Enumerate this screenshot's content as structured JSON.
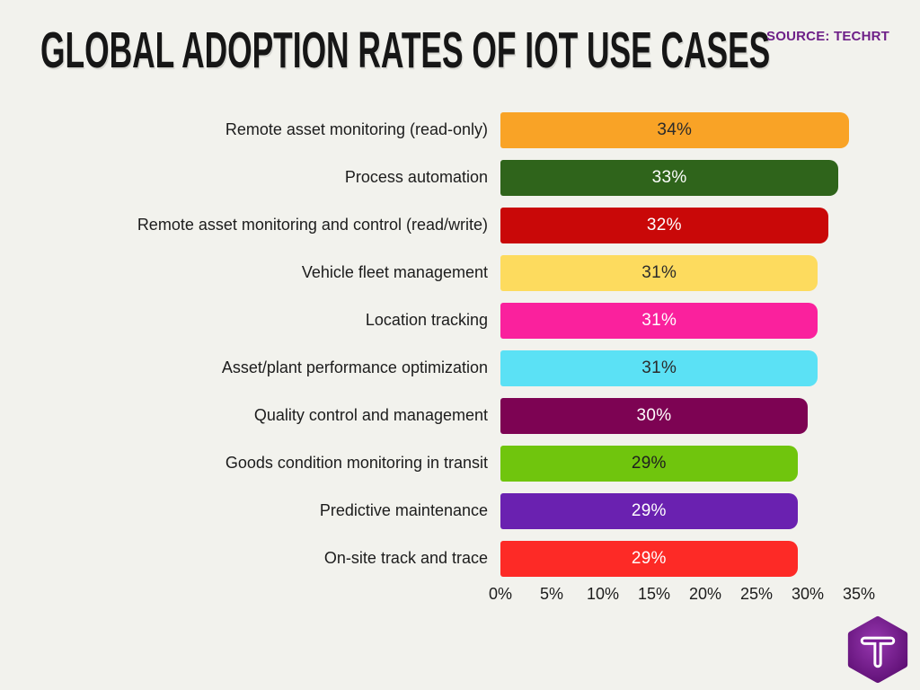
{
  "title": "GLOBAL ADOPTION RATES OF IOT USE CASES",
  "source_label": "SOURCE: TECHRT",
  "colors": {
    "background": "#F2F2ED",
    "title_text": "#161616",
    "source_text": "#6E2088",
    "label_text": "#1C1C1C",
    "axis_text": "#1C1C1C"
  },
  "chart_data": {
    "type": "bar",
    "orientation": "horizontal",
    "title": "GLOBAL ADOPTION RATES OF IOT USE CASES",
    "xlim": [
      0,
      35
    ],
    "x_tick_values": [
      0,
      5,
      10,
      15,
      20,
      25,
      30,
      35
    ],
    "x_tick_labels": [
      "0%",
      "5%",
      "10%",
      "15%",
      "20%",
      "25%",
      "30%",
      "35%"
    ],
    "grid": false,
    "legend": false,
    "categories": [
      "Remote asset monitoring (read-only)",
      "Process automation",
      "Remote asset monitoring and control (read/write)",
      "Vehicle fleet management",
      "Location tracking",
      "Asset/plant performance optimization",
      "Quality control and management",
      "Goods condition monitoring in transit",
      "Predictive maintenance",
      "On-site track and trace"
    ],
    "values": [
      34,
      33,
      32,
      31,
      31,
      31,
      30,
      29,
      29,
      29
    ],
    "value_labels": [
      "34%",
      "33%",
      "32%",
      "31%",
      "31%",
      "31%",
      "30%",
      "29%",
      "29%",
      "29%"
    ],
    "bar_colors": [
      "#F9A326",
      "#2F641B",
      "#C90808",
      "#FDDB5E",
      "#FA219D",
      "#5BE1F5",
      "#7D0353",
      "#70C50D",
      "#6A21B0",
      "#FD2A26"
    ],
    "value_text_colors": [
      "#2B2B2B",
      "#FFFFFF",
      "#FFFFFF",
      "#2B2B2B",
      "#FFFFFF",
      "#2B2B2B",
      "#FFFFFF",
      "#1E1E1E",
      "#FFFFFF",
      "#FFFFFF"
    ]
  },
  "logo": {
    "name": "techrt-hexagon-logo",
    "shape": "hexagon",
    "glyph": "T",
    "fill_center": "#9737B0",
    "fill_edge": "#5C0E72",
    "glyph_color": "#FFFFFF"
  }
}
